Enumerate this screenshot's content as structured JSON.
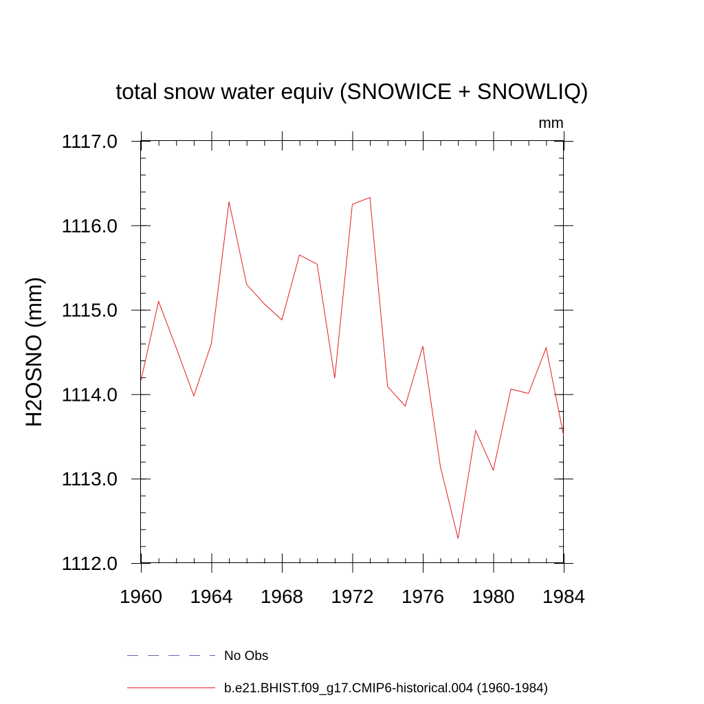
{
  "chart_data": {
    "type": "line",
    "title": "total snow water equiv (SNOWICE + SNOWLIQ)",
    "units_label": "mm",
    "xlabel": "",
    "ylabel": "H2OSNO  (mm)",
    "xlim": [
      1960,
      1984
    ],
    "ylim": [
      1112.0,
      1117.0
    ],
    "x_ticks": [
      1960,
      1964,
      1968,
      1972,
      1976,
      1980,
      1984
    ],
    "x_tick_labels": [
      "1960",
      "1964",
      "1968",
      "1972",
      "1976",
      "1980",
      "1984"
    ],
    "y_ticks": [
      1112.0,
      1113.0,
      1114.0,
      1115.0,
      1116.0,
      1117.0
    ],
    "y_tick_labels": [
      "1112.0",
      "1113.0",
      "1114.0",
      "1115.0",
      "1116.0",
      "1117.0"
    ],
    "grid": false,
    "legend_position": "bottom",
    "series": [
      {
        "name": "b.e21.BHIST.f09_g17.CMIP6-historical.004 (1960-1984)",
        "color": "#e41a1c",
        "style": "solid",
        "x": [
          1960,
          1961,
          1962,
          1963,
          1964,
          1965,
          1966,
          1967,
          1968,
          1969,
          1970,
          1971,
          1972,
          1973,
          1974,
          1975,
          1976,
          1977,
          1978,
          1979,
          1980,
          1981,
          1982,
          1983,
          1984
        ],
        "y": [
          1114.16,
          1115.1,
          1114.55,
          1113.98,
          1114.6,
          1116.28,
          1115.3,
          1115.07,
          1114.88,
          1115.65,
          1115.54,
          1114.19,
          1116.25,
          1116.33,
          1114.09,
          1113.86,
          1114.57,
          1113.14,
          1112.29,
          1113.57,
          1113.1,
          1114.06,
          1114.01,
          1114.55,
          1113.5
        ]
      }
    ],
    "legend": [
      {
        "label": "No Obs",
        "color": "#6b5fb5",
        "style": "dashed"
      },
      {
        "label": "b.e21.BHIST.f09_g17.CMIP6-historical.004 (1960-1984)",
        "color": "#e41a1c",
        "style": "solid"
      }
    ]
  }
}
